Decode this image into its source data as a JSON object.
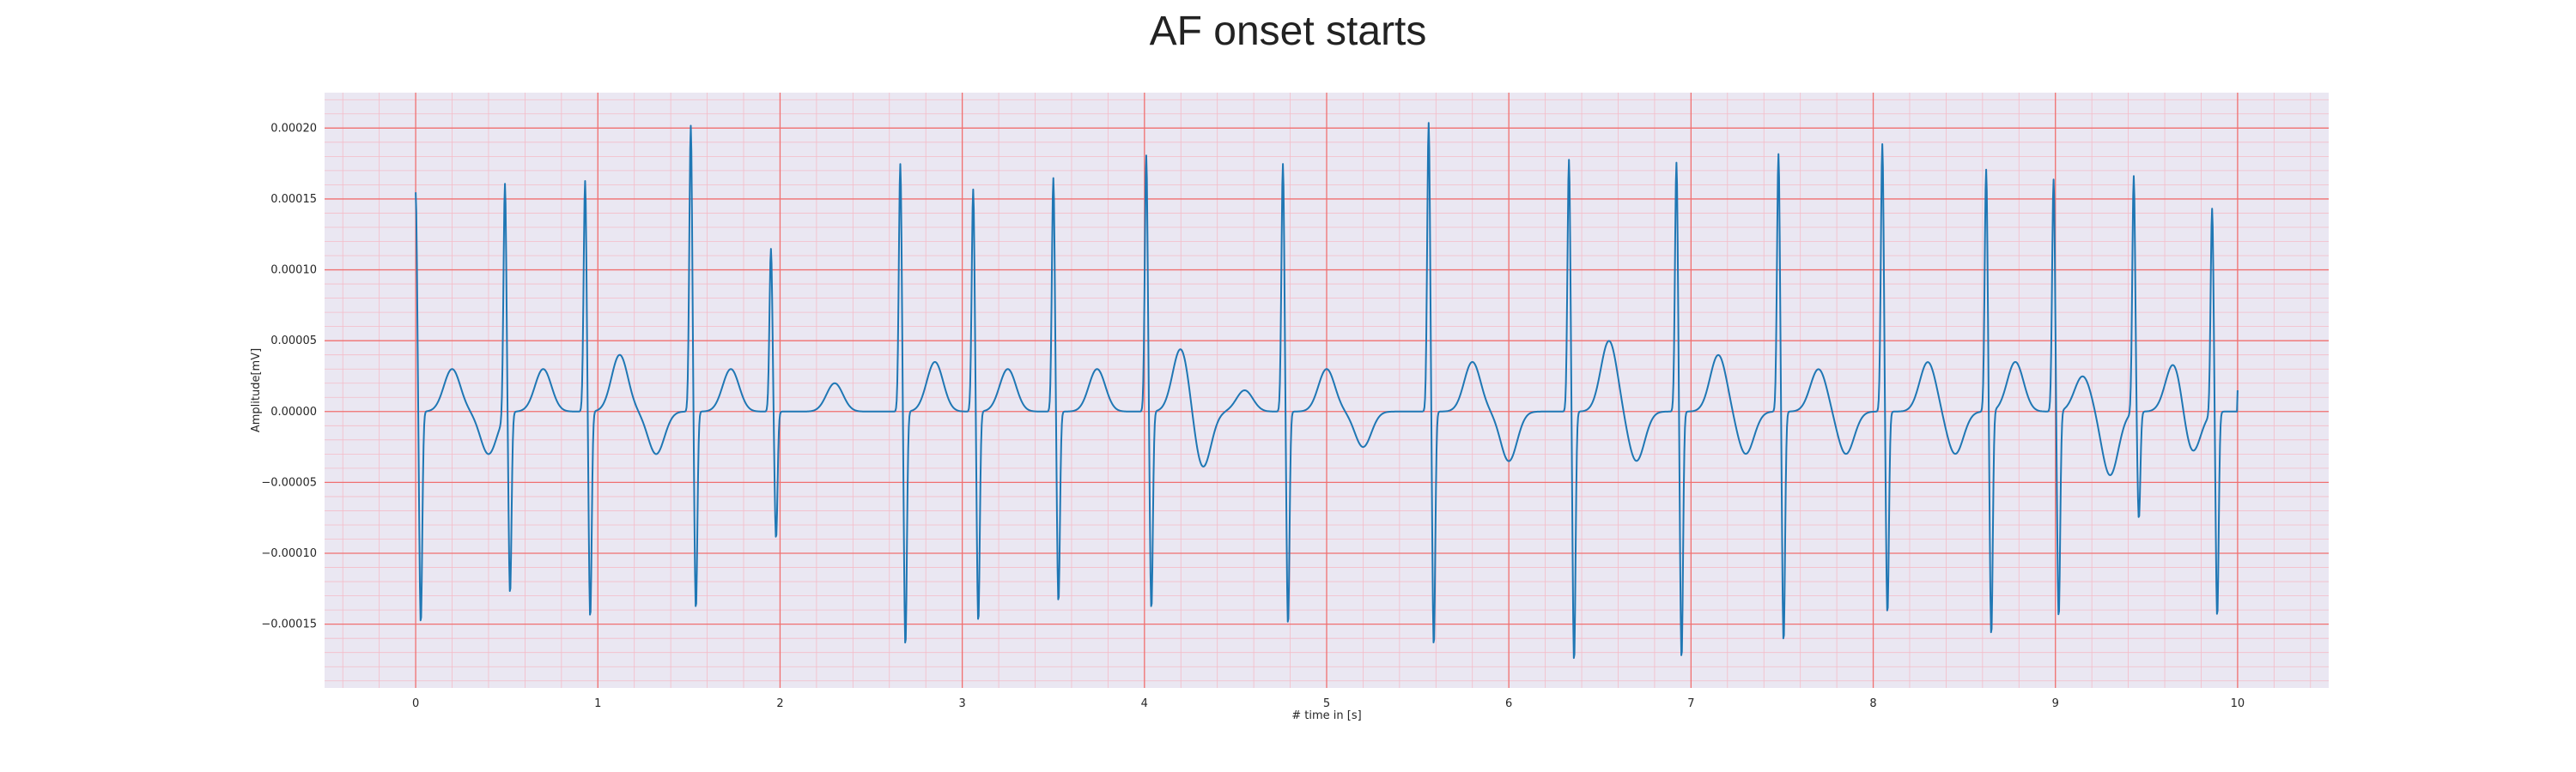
{
  "chart_data": {
    "type": "line",
    "title": "AF onset starts",
    "xlabel": "# time in [s]",
    "ylabel": "Amplitude[mV]",
    "xlim": [
      -0.5,
      10.5
    ],
    "ylim": [
      -0.000195,
      0.000225
    ],
    "x_ticks": [
      0,
      1,
      2,
      3,
      4,
      5,
      6,
      7,
      8,
      9,
      10
    ],
    "x_tick_labels": [
      "0",
      "1",
      "2",
      "3",
      "4",
      "5",
      "6",
      "7",
      "8",
      "9",
      "10"
    ],
    "y_ticks": [
      -0.00015,
      -0.0001,
      -5e-05,
      0,
      5e-05,
      0.0001,
      0.00015,
      0.0002
    ],
    "y_tick_labels": [
      "−0.00015",
      "−0.00010",
      "−0.00005",
      "0.00000",
      "0.00005",
      "0.00010",
      "0.00015",
      "0.00020"
    ],
    "grid": true,
    "colors": {
      "line": "#1f77b4",
      "background": "#eae7f2",
      "major_grid": "#f07070",
      "minor_grid": "#f4bcc8"
    },
    "series": [
      {
        "beats": [
          {
            "t": 0.0,
            "r": 0.000155,
            "s": -0.00015
          },
          {
            "t": 0.49,
            "r": 0.000165,
            "s": -0.000128
          },
          {
            "t": 0.93,
            "r": 0.000163,
            "s": -0.000146
          },
          {
            "t": 1.51,
            "r": 0.000202,
            "s": -0.00014
          },
          {
            "t": 1.95,
            "r": 0.000115,
            "s": -9e-05
          },
          {
            "t": 2.66,
            "r": 0.000175,
            "s": -0.000166
          },
          {
            "t": 3.06,
            "r": 0.000157,
            "s": -0.000149
          },
          {
            "t": 3.5,
            "r": 0.000165,
            "s": -0.000135
          },
          {
            "t": 4.01,
            "r": 0.000181,
            "s": -0.00014
          },
          {
            "t": 4.76,
            "r": 0.000175,
            "s": -0.000151
          },
          {
            "t": 5.56,
            "r": 0.000204,
            "s": -0.000166
          },
          {
            "t": 6.33,
            "r": 0.000178,
            "s": -0.000177
          },
          {
            "t": 6.92,
            "r": 0.000176,
            "s": -0.000175
          },
          {
            "t": 7.48,
            "r": 0.000182,
            "s": -0.000163
          },
          {
            "t": 8.05,
            "r": 0.000189,
            "s": -0.000143
          },
          {
            "t": 8.62,
            "r": 0.000171,
            "s": -0.000159
          },
          {
            "t": 8.99,
            "r": 0.000164,
            "s": -0.000146
          },
          {
            "t": 9.43,
            "r": 0.000167,
            "s": -7.6e-05
          },
          {
            "t": 9.86,
            "r": 0.000145,
            "s": -0.000145
          }
        ],
        "baseline_waves": [
          {
            "t": 0.2,
            "a": 3e-05
          },
          {
            "t": 0.4,
            "a": -3e-05
          },
          {
            "t": 0.7,
            "a": 3e-05
          },
          {
            "t": 1.12,
            "a": 4e-05
          },
          {
            "t": 1.32,
            "a": -3e-05
          },
          {
            "t": 1.73,
            "a": 3e-05
          },
          {
            "t": 2.3,
            "a": 2e-05
          },
          {
            "t": 2.85,
            "a": 3.5e-05
          },
          {
            "t": 3.25,
            "a": 3e-05
          },
          {
            "t": 3.74,
            "a": 3e-05
          },
          {
            "t": 4.2,
            "a": 4.5e-05
          },
          {
            "t": 4.32,
            "a": -4e-05
          },
          {
            "t": 4.55,
            "a": 1.5e-05
          },
          {
            "t": 5.0,
            "a": 3e-05
          },
          {
            "t": 5.2,
            "a": -2.5e-05
          },
          {
            "t": 5.8,
            "a": 3.5e-05
          },
          {
            "t": 6.0,
            "a": -3.5e-05
          },
          {
            "t": 6.55,
            "a": 5e-05
          },
          {
            "t": 6.7,
            "a": -3.5e-05
          },
          {
            "t": 7.15,
            "a": 4e-05
          },
          {
            "t": 7.3,
            "a": -3e-05
          },
          {
            "t": 7.7,
            "a": 3e-05
          },
          {
            "t": 7.85,
            "a": -3e-05
          },
          {
            "t": 8.3,
            "a": 3.5e-05
          },
          {
            "t": 8.45,
            "a": -3e-05
          },
          {
            "t": 8.78,
            "a": 3.5e-05
          },
          {
            "t": 9.15,
            "a": 2.5e-05
          },
          {
            "t": 9.3,
            "a": -4.5e-05
          },
          {
            "t": 9.65,
            "a": 3.5e-05
          },
          {
            "t": 9.75,
            "a": -3e-05
          }
        ],
        "end_value": 1.5e-05
      }
    ]
  }
}
